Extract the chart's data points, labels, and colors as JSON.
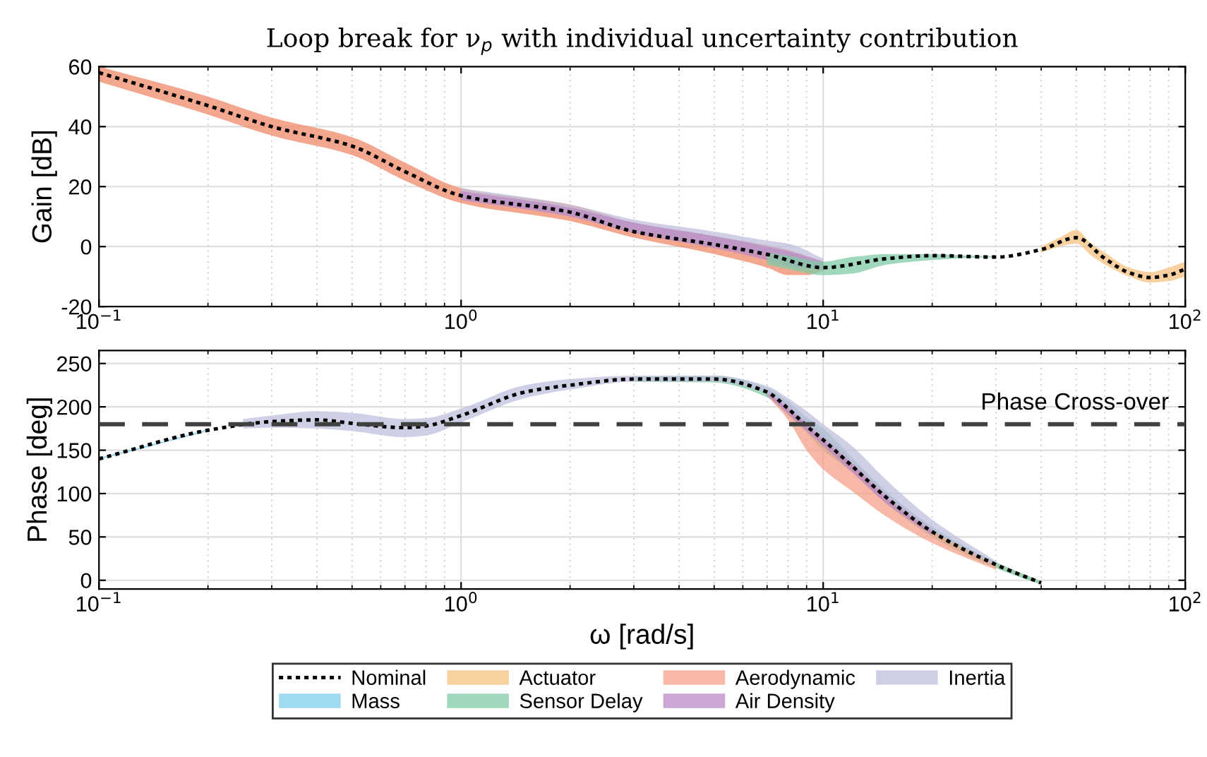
{
  "chart_data": [
    {
      "type": "line",
      "title": "Loop break for ν$_{p}$ with individual uncertainty contribution",
      "ylabel": "Gain [dB]",
      "log": "x",
      "grid": true,
      "xlim": [
        0.1,
        100
      ],
      "ylim": [
        -20,
        60
      ],
      "xticks": [
        {
          "value": 0.1,
          "label": "10$^{−1}$"
        },
        {
          "value": 1,
          "label": "10$^{0}$"
        },
        {
          "value": 10,
          "label": "10$^{1}$"
        },
        {
          "value": 100,
          "label": "10$^{2}$"
        }
      ],
      "yticks": [
        -20,
        0,
        20,
        40,
        60
      ],
      "series": [
        {
          "type": "area",
          "color": "#f08a6a",
          "x": [
            0.1,
            0.2,
            0.3,
            0.5,
            0.7,
            1,
            2,
            3,
            5,
            7,
            8,
            9,
            10
          ],
          "values": [
            null,
            null,
            null,
            null,
            null,
            null,
            null,
            null,
            null,
            null,
            null,
            null,
            null
          ],
          "lower": [
            55,
            44,
            37,
            30.5,
            22,
            14.5,
            8.5,
            3,
            -2.5,
            -7,
            -9.5,
            -9.5,
            -8
          ],
          "upper": [
            60,
            50,
            43,
            36.5,
            28,
            19.5,
            14,
            8,
            3.5,
            0.5,
            -1,
            -3,
            -5
          ]
        },
        {
          "type": "area",
          "color": "#bfc0de",
          "x": [
            1,
            2,
            3,
            5,
            7,
            8,
            10
          ],
          "values": [
            null,
            null,
            null,
            null,
            null,
            null,
            null
          ],
          "lower": [
            16,
            10.5,
            5,
            0,
            -3,
            -4.5,
            -7
          ],
          "upper": [
            19.5,
            14,
            9,
            5,
            2,
            1,
            -4
          ]
        },
        {
          "type": "area",
          "color": "#b98bc5",
          "x": [
            1,
            2,
            3,
            5,
            7,
            8,
            10
          ],
          "values": [
            null,
            null,
            null,
            null,
            null,
            null,
            null
          ],
          "lower": [
            15.5,
            10,
            4.5,
            -0.5,
            -4.5,
            -6.5,
            -8
          ],
          "upper": [
            18.5,
            13,
            8,
            3.5,
            0,
            -1.5,
            -5
          ]
        },
        {
          "type": "area",
          "color": "#7fcba6",
          "x": [
            7,
            8,
            10,
            12,
            15,
            20,
            25,
            30
          ],
          "values": [
            null,
            null,
            null,
            null,
            null,
            null,
            null,
            null
          ],
          "lower": [
            -6,
            -7.5,
            -9.5,
            -9,
            -6,
            -4.5,
            -3.8,
            -3.5
          ],
          "upper": [
            -2,
            -3,
            -5,
            -3.5,
            -2.5,
            -2.5,
            -3,
            -3.2
          ]
        },
        {
          "type": "area",
          "color": "#f7c07f",
          "x": [
            40,
            45,
            50,
            55,
            60,
            70,
            80,
            90,
            100
          ],
          "values": [
            null,
            null,
            null,
            null,
            null,
            null,
            null,
            null,
            null
          ],
          "lower": [
            -2,
            0,
            1,
            -3,
            -6,
            -10,
            -12,
            -11.5,
            -10
          ],
          "upper": [
            0,
            3,
            5.5,
            1,
            -2,
            -7,
            -8.5,
            -7,
            -5
          ]
        },
        {
          "color": "#000000",
          "line_style": "dotted",
          "x": [
            0.1,
            0.2,
            0.3,
            0.5,
            0.7,
            1,
            2,
            3,
            5,
            7,
            10,
            15,
            20,
            30,
            40,
            50,
            60,
            70,
            80,
            90,
            100
          ],
          "values": [
            58,
            47,
            40,
            33.5,
            25,
            17,
            11.5,
            5,
            0.7,
            -2.6,
            -7,
            -4,
            -3,
            -3.5,
            -1,
            3,
            -4,
            -8.7,
            -10.3,
            -9.5,
            -7.5
          ]
        }
      ]
    },
    {
      "type": "line",
      "ylabel": "Phase [deg]",
      "xlabel": "ω [rad/s]",
      "log": "x",
      "grid": true,
      "legend": "bottom",
      "xlim": [
        0.1,
        100
      ],
      "ylim": [
        -10,
        265
      ],
      "xticks": [
        {
          "value": 0.1,
          "label": "10$^{−1}$"
        },
        {
          "value": 1,
          "label": "10$^{0}$"
        },
        {
          "value": 10,
          "label": "10$^{1}$"
        },
        {
          "value": 100,
          "label": "10$^{2}$"
        }
      ],
      "yticks": [
        0,
        50,
        100,
        150,
        200,
        250
      ],
      "ref_lines": [
        {
          "axis": "y",
          "value": 180,
          "label": "Phase Cross-over",
          "color": "#404040",
          "line_style": "dashed"
        }
      ],
      "series": [
        {
          "name": "Nominal",
          "color": "#000000",
          "line_style": "dotted",
          "x": [
            0.1,
            0.2,
            0.3,
            0.4,
            0.5,
            0.7,
            0.8,
            1,
            1.5,
            2,
            3,
            5,
            7,
            8,
            9,
            10,
            12,
            15,
            20,
            30,
            40
          ],
          "values": [
            140,
            173,
            183,
            185,
            181,
            176,
            178,
            190,
            217,
            225,
            232,
            232,
            217,
            198,
            178,
            162,
            132,
            95,
            56,
            18,
            -3
          ]
        },
        {
          "name": "Mass",
          "type": "area",
          "color": "#7fcdee",
          "x": [
            0.1,
            0.2
          ],
          "values": [
            null,
            null
          ],
          "lower": [
            139,
            172
          ],
          "upper": [
            141,
            174
          ]
        },
        {
          "name": "Actuator",
          "type": "area",
          "color": "#f7c07f",
          "x": [
            20,
            30,
            40
          ],
          "values": [
            null,
            null,
            null
          ],
          "lower": [
            54,
            16,
            -4
          ],
          "upper": [
            58,
            20,
            -2
          ]
        },
        {
          "name": "Sensor Delay",
          "type": "area",
          "color": "#7fcba6",
          "x": [
            3,
            5,
            7,
            8,
            9,
            10,
            12,
            15,
            20,
            30,
            40
          ],
          "values": [
            null,
            null,
            null,
            null,
            null,
            null,
            null,
            null,
            null,
            null,
            null
          ],
          "lower": [
            229,
            228,
            211,
            190,
            170,
            150,
            125,
            88,
            50,
            14,
            -5
          ],
          "upper": [
            235,
            236,
            222,
            206,
            188,
            175,
            142,
            102,
            62,
            21,
            -1
          ]
        },
        {
          "name": "Aerodynamic",
          "type": "area",
          "color": "#f4a08a",
          "x": [
            7,
            8,
            9,
            10,
            12,
            15,
            20,
            30
          ],
          "values": [
            null,
            null,
            null,
            null,
            null,
            null,
            null,
            null
          ],
          "lower": [
            213,
            185,
            150,
            128,
            103,
            73,
            43,
            12
          ],
          "upper": [
            220,
            200,
            180,
            165,
            135,
            98,
            58,
            19
          ]
        },
        {
          "name": "Air Density",
          "type": "area",
          "color": "#b98bc5",
          "x": [
            7,
            8,
            9,
            10,
            12,
            15,
            20
          ],
          "values": [
            null,
            null,
            null,
            null,
            null,
            null,
            null
          ],
          "lower": [
            213,
            192,
            172,
            155,
            125,
            88,
            52
          ],
          "upper": [
            220,
            203,
            184,
            168,
            138,
            100,
            60
          ]
        },
        {
          "name": "Inertia",
          "type": "area",
          "color": "#bfc0de",
          "x": [
            0.25,
            0.3,
            0.4,
            0.5,
            0.7,
            0.8,
            1,
            1.5,
            2,
            3,
            5,
            7,
            8,
            9,
            10,
            12,
            15,
            20,
            30
          ],
          "values": [
            null,
            null,
            null,
            null,
            null,
            null,
            null,
            null,
            null,
            null,
            null,
            null,
            null,
            null,
            null,
            null,
            null,
            null,
            null
          ],
          "lower": [
            175,
            176,
            175,
            172,
            165,
            167,
            182,
            210,
            220,
            229,
            229,
            215,
            198,
            180,
            162,
            135,
            95,
            57,
            16
          ],
          "upper": [
            186,
            190,
            195,
            193,
            186,
            187,
            198,
            225,
            232,
            236,
            236,
            224,
            210,
            195,
            180,
            155,
            115,
            70,
            22
          ]
        }
      ]
    }
  ]
}
